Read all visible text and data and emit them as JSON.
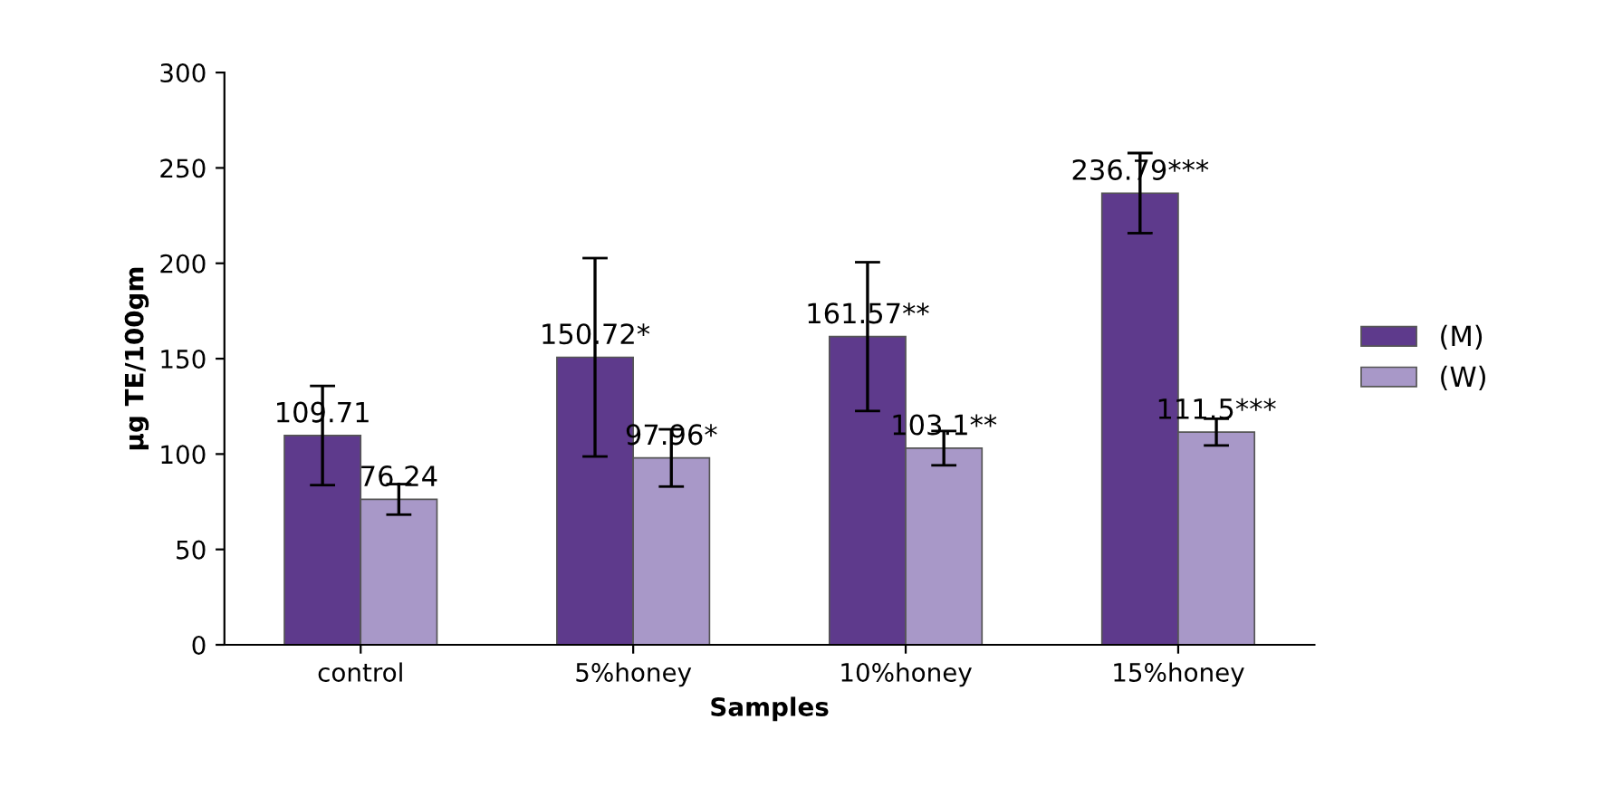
{
  "chart_data": {
    "type": "bar",
    "xlabel": "Samples",
    "ylabel": "µg TE/100gm",
    "categories": [
      "control",
      "5%honey",
      "10%honey",
      "15%honey"
    ],
    "series": [
      {
        "name": "(M)",
        "color": "#5e3a8c",
        "values": [
          109.71,
          150.72,
          161.57,
          236.79
        ],
        "errors": [
          26,
          52,
          39,
          21
        ],
        "value_labels": [
          "109.71",
          "150.72*",
          "161.57**",
          "236.79***"
        ]
      },
      {
        "name": "(W)",
        "color": "#a898c8",
        "values": [
          76.24,
          97.96,
          103.1,
          111.5
        ],
        "errors": [
          8,
          15,
          9,
          7
        ],
        "value_labels": [
          "76.24",
          "97.96*",
          "103.1**",
          "111.5***"
        ]
      }
    ],
    "ylim": [
      0,
      300
    ],
    "yticks": [
      0,
      50,
      100,
      150,
      200,
      250,
      300
    ],
    "grid": false,
    "legend": "right"
  }
}
